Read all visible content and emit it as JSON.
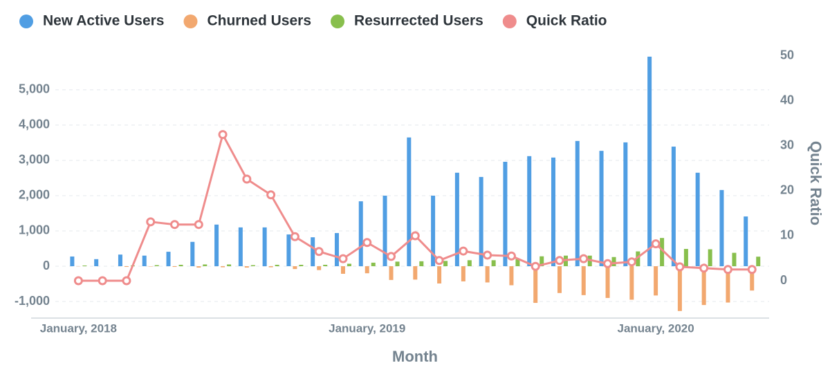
{
  "chart_data": {
    "type": "bar",
    "x_label": "Month",
    "y2_label": "Quick Ratio",
    "categories": [
      "January, 2018",
      null,
      null,
      null,
      null,
      null,
      null,
      null,
      null,
      null,
      null,
      null,
      "January, 2019",
      null,
      null,
      null,
      null,
      null,
      null,
      null,
      null,
      null,
      null,
      null,
      "January, 2020",
      null,
      null,
      null,
      null
    ],
    "series": [
      {
        "name": "New Active Users",
        "color": "#509ee3",
        "type": "bar",
        "values": [
          275,
          200,
          330,
          300,
          410,
          690,
          1180,
          1100,
          1100,
          900,
          820,
          940,
          1840,
          2000,
          3650,
          2000,
          2650,
          2530,
          2960,
          3120,
          3080,
          3550,
          3270,
          3510,
          5940,
          3390,
          2650,
          2160,
          1410
        ]
      },
      {
        "name": "Churned Users",
        "color": "#f2a86f",
        "type": "bar",
        "values": [
          -5,
          0,
          -20,
          -10,
          -20,
          -40,
          -30,
          -40,
          -30,
          -80,
          -110,
          -215,
          -200,
          -390,
          -380,
          -490,
          -430,
          -460,
          -540,
          -1040,
          -760,
          -820,
          -900,
          -950,
          -830,
          -1270,
          -1100,
          -1030,
          -690
        ]
      },
      {
        "name": "Resurrected Users",
        "color": "#88bf4d",
        "type": "bar",
        "values": [
          20,
          0,
          20,
          30,
          40,
          50,
          50,
          30,
          40,
          40,
          40,
          70,
          100,
          130,
          140,
          150,
          170,
          170,
          200,
          280,
          300,
          300,
          260,
          420,
          800,
          490,
          480,
          380,
          270
        ]
      },
      {
        "name": "Quick Ratio",
        "color": "#ef8c8c",
        "type": "line",
        "axis": "y2",
        "values": [
          0,
          0,
          0,
          13.1,
          12.5,
          12.5,
          32.5,
          22.6,
          19.1,
          9.8,
          6.5,
          4.9,
          8.5,
          5.4,
          10,
          4.5,
          6.6,
          5.7,
          5.5,
          3.2,
          4.5,
          4.9,
          3.8,
          4.2,
          8.2,
          3.1,
          2.8,
          2.5,
          2.5
        ]
      }
    ],
    "ylim": [
      -1470,
      6370
    ],
    "yticks": [
      {
        "value": -1000,
        "label": "-1,000"
      },
      0,
      {
        "value": 1000,
        "label": "1,000"
      },
      {
        "value": 2000,
        "label": "2,000"
      },
      {
        "value": 3000,
        "label": "3,000"
      },
      {
        "value": 4000,
        "label": "4,000"
      },
      {
        "value": 5000,
        "label": "5,000"
      }
    ],
    "y2lim": [
      -8.3,
      53.2
    ],
    "y2ticks": [
      0,
      10,
      20,
      30,
      40,
      50
    ],
    "grid": true,
    "legend": "top-left"
  }
}
